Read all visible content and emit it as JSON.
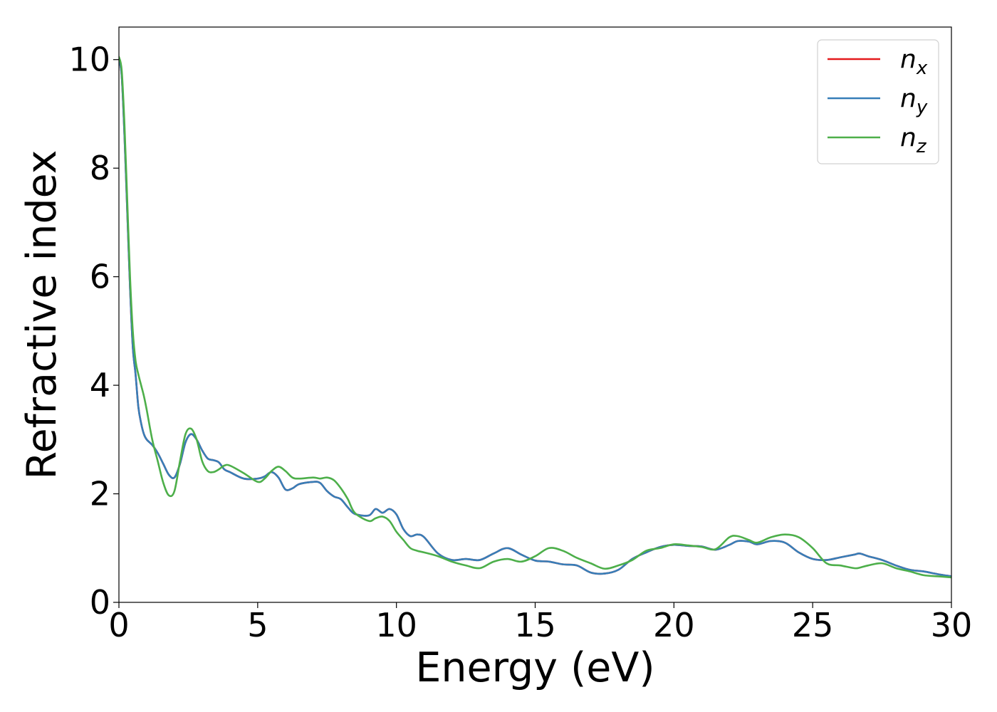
{
  "chart_data": {
    "type": "line",
    "xlabel": "Energy (eV)",
    "ylabel": "Refractive index",
    "xlim": [
      0,
      30
    ],
    "ylim": [
      0,
      10.6
    ],
    "xticks": [
      0,
      5,
      10,
      15,
      20,
      25,
      30
    ],
    "yticks": [
      0,
      2,
      4,
      6,
      8,
      10
    ],
    "grid": false,
    "legend_placement": "top-right",
    "series": [
      {
        "name": "n_x",
        "base": "n",
        "sub": "x",
        "color": "#e41a1c",
        "x": [
          0,
          0.1,
          0.2,
          0.3,
          0.4,
          0.5,
          0.6,
          0.7,
          0.8,
          0.9,
          1.0,
          1.2,
          1.4,
          1.6,
          1.8,
          2.0,
          2.2,
          2.4,
          2.6,
          2.8,
          3.0,
          3.2,
          3.4,
          3.6,
          3.8,
          4.0,
          4.5,
          5.0,
          5.25,
          5.5,
          5.75,
          6.0,
          6.25,
          6.5,
          7.0,
          7.25,
          7.5,
          7.75,
          8.0,
          8.25,
          8.5,
          9.0,
          9.25,
          9.5,
          9.75,
          10.0,
          10.25,
          10.5,
          10.75,
          11.0,
          11.5,
          12.0,
          12.5,
          13.0,
          13.5,
          14.0,
          14.5,
          15.0,
          15.5,
          16.0,
          16.5,
          17.0,
          17.5,
          18.0,
          18.5,
          19.0,
          19.5,
          20.0,
          20.5,
          21.0,
          21.5,
          22.0,
          22.3,
          22.7,
          23.0,
          23.5,
          24.0,
          24.5,
          25.0,
          25.5,
          26.0,
          26.5,
          26.7,
          27.0,
          27.5,
          28.0,
          28.5,
          29.0,
          29.5,
          30.0
        ],
        "y": [
          10.0,
          9.7,
          8.6,
          7.2,
          5.8,
          4.7,
          4.2,
          3.6,
          3.3,
          3.1,
          3.0,
          2.9,
          2.75,
          2.55,
          2.35,
          2.3,
          2.55,
          2.95,
          3.1,
          3.0,
          2.8,
          2.65,
          2.62,
          2.58,
          2.45,
          2.4,
          2.28,
          2.28,
          2.32,
          2.4,
          2.3,
          2.08,
          2.1,
          2.18,
          2.22,
          2.2,
          2.05,
          1.95,
          1.9,
          1.75,
          1.63,
          1.6,
          1.72,
          1.65,
          1.72,
          1.62,
          1.35,
          1.22,
          1.25,
          1.2,
          0.9,
          0.78,
          0.8,
          0.78,
          0.9,
          1.0,
          0.88,
          0.77,
          0.75,
          0.7,
          0.68,
          0.55,
          0.53,
          0.6,
          0.8,
          0.92,
          1.02,
          1.06,
          1.04,
          1.03,
          0.97,
          1.06,
          1.13,
          1.12,
          1.07,
          1.13,
          1.1,
          0.92,
          0.8,
          0.78,
          0.83,
          0.88,
          0.9,
          0.85,
          0.78,
          0.68,
          0.6,
          0.57,
          0.52,
          0.48
        ]
      },
      {
        "name": "n_y",
        "base": "n",
        "sub": "y",
        "color": "#377eb8",
        "x": [
          0,
          0.1,
          0.2,
          0.3,
          0.4,
          0.5,
          0.6,
          0.7,
          0.8,
          0.9,
          1.0,
          1.2,
          1.4,
          1.6,
          1.8,
          2.0,
          2.2,
          2.4,
          2.6,
          2.8,
          3.0,
          3.2,
          3.4,
          3.6,
          3.8,
          4.0,
          4.5,
          5.0,
          5.25,
          5.5,
          5.75,
          6.0,
          6.25,
          6.5,
          7.0,
          7.25,
          7.5,
          7.75,
          8.0,
          8.25,
          8.5,
          9.0,
          9.25,
          9.5,
          9.75,
          10.0,
          10.25,
          10.5,
          10.75,
          11.0,
          11.5,
          12.0,
          12.5,
          13.0,
          13.5,
          14.0,
          14.5,
          15.0,
          15.5,
          16.0,
          16.5,
          17.0,
          17.5,
          18.0,
          18.5,
          19.0,
          19.5,
          20.0,
          20.5,
          21.0,
          21.5,
          22.0,
          22.3,
          22.7,
          23.0,
          23.5,
          24.0,
          24.5,
          25.0,
          25.5,
          26.0,
          26.5,
          26.7,
          27.0,
          27.5,
          28.0,
          28.5,
          29.0,
          29.5,
          30.0
        ],
        "y": [
          10.0,
          9.7,
          8.6,
          7.2,
          5.8,
          4.7,
          4.2,
          3.6,
          3.3,
          3.1,
          3.0,
          2.9,
          2.75,
          2.55,
          2.35,
          2.3,
          2.55,
          2.95,
          3.1,
          3.0,
          2.8,
          2.65,
          2.62,
          2.58,
          2.45,
          2.4,
          2.28,
          2.28,
          2.32,
          2.4,
          2.3,
          2.08,
          2.1,
          2.18,
          2.22,
          2.2,
          2.05,
          1.95,
          1.9,
          1.75,
          1.63,
          1.6,
          1.72,
          1.65,
          1.72,
          1.62,
          1.35,
          1.22,
          1.25,
          1.2,
          0.9,
          0.78,
          0.8,
          0.78,
          0.9,
          1.0,
          0.88,
          0.77,
          0.75,
          0.7,
          0.68,
          0.55,
          0.53,
          0.6,
          0.8,
          0.92,
          1.02,
          1.06,
          1.04,
          1.03,
          0.97,
          1.06,
          1.13,
          1.12,
          1.07,
          1.13,
          1.1,
          0.92,
          0.8,
          0.78,
          0.83,
          0.88,
          0.9,
          0.85,
          0.78,
          0.68,
          0.6,
          0.57,
          0.52,
          0.48
        ]
      },
      {
        "name": "n_z",
        "base": "n",
        "sub": "z",
        "color": "#4daf4a",
        "x": [
          0,
          0.1,
          0.2,
          0.3,
          0.4,
          0.5,
          0.6,
          0.7,
          0.8,
          0.9,
          1.0,
          1.2,
          1.4,
          1.6,
          1.8,
          2.0,
          2.2,
          2.4,
          2.6,
          2.8,
          3.0,
          3.2,
          3.4,
          3.6,
          3.8,
          4.0,
          4.5,
          5.0,
          5.25,
          5.5,
          5.75,
          6.0,
          6.25,
          6.5,
          7.0,
          7.25,
          7.5,
          7.75,
          8.0,
          8.25,
          8.5,
          9.0,
          9.25,
          9.5,
          9.75,
          10.0,
          10.25,
          10.5,
          10.75,
          11.0,
          11.5,
          12.0,
          12.5,
          13.0,
          13.5,
          14.0,
          14.5,
          15.0,
          15.5,
          16.0,
          16.5,
          17.0,
          17.5,
          18.0,
          18.5,
          19.0,
          19.5,
          20.0,
          20.5,
          21.0,
          21.5,
          22.0,
          22.3,
          22.7,
          23.0,
          23.5,
          24.0,
          24.5,
          25.0,
          25.5,
          26.0,
          26.5,
          26.7,
          27.0,
          27.5,
          28.0,
          28.5,
          29.0,
          29.5,
          30.0
        ],
        "y": [
          10.05,
          9.8,
          8.8,
          7.4,
          6.0,
          5.0,
          4.45,
          4.2,
          4.0,
          3.8,
          3.55,
          3.0,
          2.6,
          2.2,
          1.97,
          2.05,
          2.6,
          3.1,
          3.2,
          3.0,
          2.6,
          2.42,
          2.4,
          2.45,
          2.52,
          2.52,
          2.38,
          2.22,
          2.28,
          2.42,
          2.5,
          2.42,
          2.3,
          2.28,
          2.3,
          2.28,
          2.3,
          2.25,
          2.1,
          1.9,
          1.65,
          1.5,
          1.55,
          1.58,
          1.5,
          1.3,
          1.15,
          1.0,
          0.95,
          0.92,
          0.85,
          0.75,
          0.68,
          0.63,
          0.75,
          0.8,
          0.75,
          0.85,
          1.0,
          0.95,
          0.82,
          0.72,
          0.62,
          0.68,
          0.78,
          0.95,
          1.0,
          1.07,
          1.05,
          1.02,
          0.98,
          1.2,
          1.22,
          1.15,
          1.1,
          1.2,
          1.25,
          1.2,
          1.0,
          0.72,
          0.68,
          0.63,
          0.64,
          0.68,
          0.72,
          0.63,
          0.57,
          0.5,
          0.48,
          0.46
        ]
      }
    ]
  }
}
